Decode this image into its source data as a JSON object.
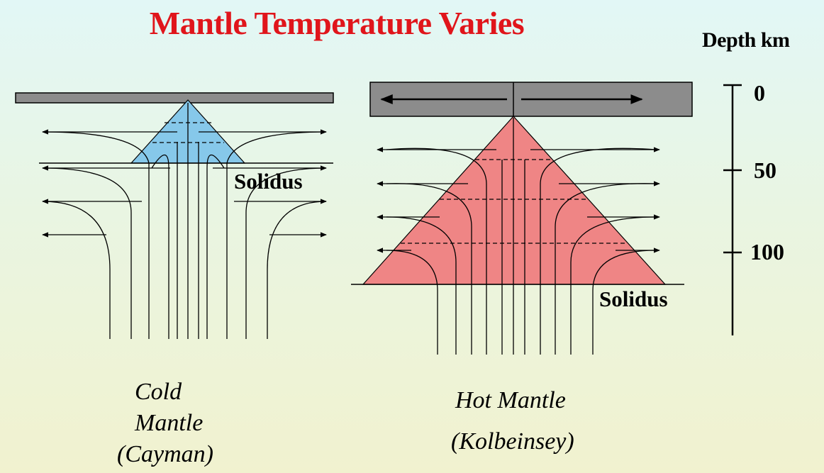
{
  "title": "Mantle Temperature Varies",
  "depth_axis": {
    "title": "Depth km",
    "ticks": [
      "0",
      "50",
      "100"
    ]
  },
  "left_panel": {
    "solidus_label": "Solidus",
    "caption_line1": "Cold",
    "caption_line2": "Mantle",
    "caption_line3": "(Cayman)",
    "melt_color": "#86c8ea"
  },
  "right_panel": {
    "solidus_label": "Solidus",
    "caption_line1": "Hot Mantle",
    "caption_line2": "(Kolbeinsey)",
    "melt_color": "#ef8585"
  },
  "colors": {
    "title": "#e0151b",
    "plate": "#8c8c8c"
  }
}
